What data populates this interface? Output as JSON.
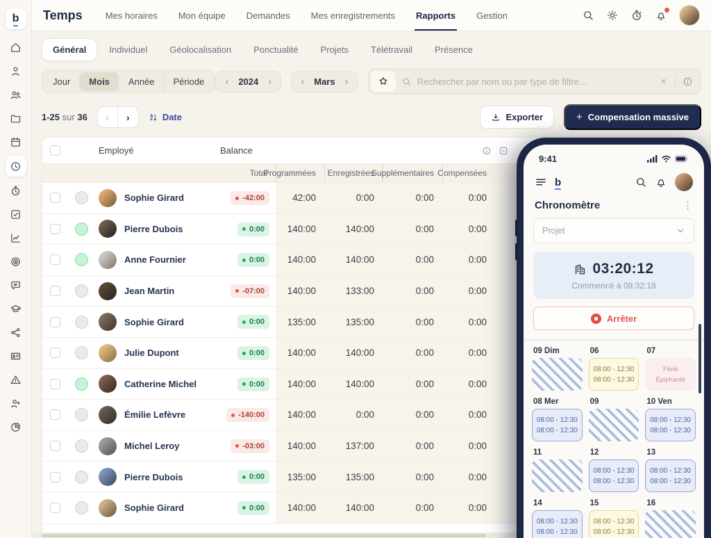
{
  "brand": {
    "logo": "b",
    "app_title": "Temps"
  },
  "top_nav": {
    "items": [
      "Mes horaires",
      "Mon équipe",
      "Demandes",
      "Mes enregistrements",
      "Rapports",
      "Gestion"
    ],
    "active": "Rapports"
  },
  "top_icons": [
    "search-icon",
    "gear-icon",
    "timer-icon",
    "bell-icon",
    "avatar"
  ],
  "notifications": {
    "has_unread": true
  },
  "tabs": {
    "items": [
      "Général",
      "Individuel",
      "Géolocalisation",
      "Ponctualité",
      "Projets",
      "Télétravail",
      "Présence"
    ],
    "active": "Général"
  },
  "filters": {
    "period_options": [
      "Jour",
      "Mois",
      "Année",
      "Période"
    ],
    "period_active": "Mois",
    "year": "2024",
    "month": "Mars",
    "search_placeholder": "Rechercher par nom ou par type de filtre..."
  },
  "toolbar": {
    "range": "1-25",
    "of_label": "sur",
    "total": "36",
    "sort_label": "Date",
    "export_label": "Exporter",
    "compensation_label": "Compensation massive"
  },
  "sidebar": {
    "items": [
      "home",
      "user",
      "users",
      "folder",
      "calendar",
      "clock",
      "timer",
      "check-square",
      "chart",
      "target",
      "chat",
      "graduation-cap",
      "hierarchy",
      "id-card",
      "alert-triangle",
      "user-plus",
      "pie-chart"
    ],
    "active": "clock"
  },
  "table": {
    "col_employee": "Employé",
    "col_balance": "Balance",
    "subcols": [
      "Total",
      "Programmées",
      "Enregistrées",
      "Supplémentaires",
      "Compensées"
    ],
    "rows": [
      {
        "name": "Sophie Girard",
        "status": "gray",
        "balance": "-42:00",
        "balance_type": "neg",
        "values": [
          "42:00",
          "0:00",
          "0:00",
          "0:00"
        ],
        "avatar": [
          "#d9a86a",
          "#8a6a3f"
        ]
      },
      {
        "name": "Pierre Dubois",
        "status": "green",
        "balance": "0:00",
        "balance_type": "pos",
        "values": [
          "140:00",
          "140:00",
          "0:00",
          "0:00"
        ],
        "avatar": [
          "#6b5b4a",
          "#2f2a25"
        ]
      },
      {
        "name": "Anne Fournier",
        "status": "green",
        "balance": "0:00",
        "balance_type": "pos",
        "values": [
          "140:00",
          "140:00",
          "0:00",
          "0:00"
        ],
        "avatar": [
          "#cdc6bf",
          "#8d8379"
        ]
      },
      {
        "name": "Jean Martin",
        "status": "gray",
        "balance": "-07:00",
        "balance_type": "neg",
        "values": [
          "140:00",
          "133:00",
          "0:00",
          "0:00"
        ],
        "avatar": [
          "#5a4632",
          "#2f2a25"
        ]
      },
      {
        "name": "Sophie Girard",
        "status": "gray",
        "balance": "0:00",
        "balance_type": "pos",
        "values": [
          "135:00",
          "135:00",
          "0:00",
          "0:00"
        ],
        "avatar": [
          "#7a6a57",
          "#4a3c33"
        ]
      },
      {
        "name": "Julie Dupont",
        "status": "gray",
        "balance": "0:00",
        "balance_type": "pos",
        "values": [
          "140:00",
          "140:00",
          "0:00",
          "0:00"
        ],
        "avatar": [
          "#d9b878",
          "#9a7d4f"
        ]
      },
      {
        "name": "Catherine Michel",
        "status": "green",
        "balance": "0:00",
        "balance_type": "pos",
        "values": [
          "140:00",
          "140:00",
          "0:00",
          "0:00"
        ],
        "avatar": [
          "#7a5c48",
          "#43332a"
        ]
      },
      {
        "name": "Émilie Lefèvre",
        "status": "gray",
        "balance": "-140:00",
        "balance_type": "neg",
        "values": [
          "140:00",
          "0:00",
          "0:00",
          "0:00"
        ],
        "avatar": [
          "#665a50",
          "#3a3430"
        ]
      },
      {
        "name": "Michel Leroy",
        "status": "gray",
        "balance": "-03:00",
        "balance_type": "neg",
        "values": [
          "140:00",
          "137:00",
          "0:00",
          "0:00"
        ],
        "avatar": [
          "#9a9a9a",
          "#5f5f5f"
        ]
      },
      {
        "name": "Pierre Dubois",
        "status": "gray",
        "balance": "0:00",
        "balance_type": "pos",
        "values": [
          "135:00",
          "135:00",
          "0:00",
          "0:00"
        ],
        "avatar": [
          "#7d93b5",
          "#45566e"
        ]
      },
      {
        "name": "Sophie Girard",
        "status": "gray",
        "balance": "0:00",
        "balance_type": "pos",
        "values": [
          "140:00",
          "140:00",
          "0:00",
          "0:00"
        ],
        "avatar": [
          "#cbb089",
          "#7e6845"
        ]
      }
    ]
  },
  "phone": {
    "status_time": "9:41",
    "screen_title": "Chronomètre",
    "project_select": "Projet",
    "timer": {
      "value": "03:20:12",
      "started_label": "Commencé à 08:32:18"
    },
    "stop_label": "Arrêter",
    "calendar": {
      "cells": [
        {
          "label": "09 Dim",
          "type": "striped",
          "lines": []
        },
        {
          "label": "06",
          "type": "yellow",
          "lines": [
            "08:00 - 12:30",
            "08:00 - 12:30"
          ]
        },
        {
          "label": "07",
          "type": "holiday",
          "lines": [
            "Férié",
            "Épiphanie"
          ]
        },
        {
          "label": "08 Mer",
          "type": "blue",
          "lines": [
            "08:00 - 12:30",
            "08:00 - 12:30"
          ]
        },
        {
          "label": "09",
          "type": "striped",
          "lines": []
        },
        {
          "label": "10 Ven",
          "type": "blue",
          "lines": [
            "08:00 - 12:30",
            "08:00 - 12:30"
          ]
        },
        {
          "label": "11",
          "type": "striped",
          "lines": []
        },
        {
          "label": "12",
          "type": "blue",
          "lines": [
            "08:00 - 12:30",
            "08:00 - 12:30"
          ]
        },
        {
          "label": "13",
          "type": "blue",
          "lines": [
            "08:00 - 12:30",
            "08:00 - 12:30"
          ]
        },
        {
          "label": "14",
          "type": "blue",
          "lines": [
            "08:00 - 12:30",
            "08:00 - 12:30"
          ]
        },
        {
          "label": "15",
          "type": "yellow",
          "lines": [
            "08:00 - 12:30",
            "08:00 - 12:30"
          ]
        },
        {
          "label": "16",
          "type": "striped",
          "lines": []
        }
      ]
    }
  },
  "colors": {
    "brand_navy": "#222d52",
    "accent_blue": "#4f7df0",
    "negative_red": "#e05248",
    "positive_green": "#27a866",
    "stop_red": "#e84b3f",
    "page_bg": "#f6f3ed",
    "beige_col_bg": "#f8f4ec"
  }
}
